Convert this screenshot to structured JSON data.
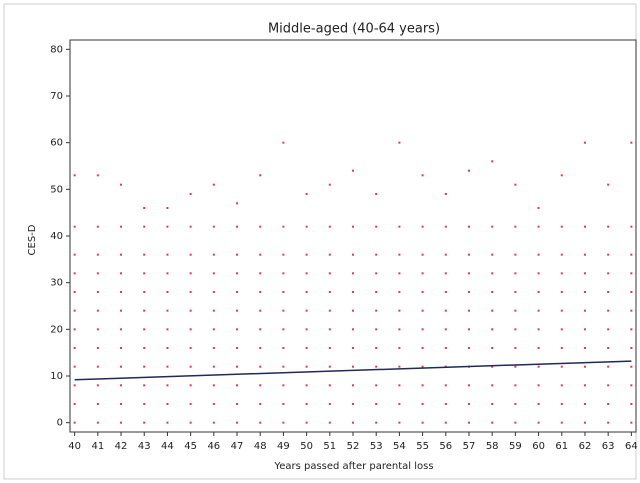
{
  "chart_data": {
    "type": "scatter",
    "title": "Middle-aged (40-64 years)",
    "x_label": "Years passed after parental loss",
    "y_label": "CES-D",
    "x": [
      40,
      40,
      40,
      40,
      40,
      40,
      40,
      40,
      40,
      40,
      40,
      40,
      41,
      41,
      41,
      41,
      41,
      41,
      41,
      41,
      41,
      41,
      41,
      41,
      42,
      42,
      42,
      42,
      42,
      42,
      42,
      42,
      42,
      42,
      42,
      42,
      43,
      43,
      43,
      43,
      43,
      43,
      43,
      43,
      43,
      43,
      43,
      43,
      44,
      44,
      44,
      44,
      44,
      44,
      44,
      44,
      44,
      44,
      44,
      44,
      45,
      45,
      45,
      45,
      45,
      45,
      45,
      45,
      45,
      45,
      45,
      45,
      46,
      46,
      46,
      46,
      46,
      46,
      46,
      46,
      46,
      46,
      46,
      46,
      47,
      47,
      47,
      47,
      47,
      47,
      47,
      47,
      47,
      47,
      47,
      47,
      48,
      48,
      48,
      48,
      48,
      48,
      48,
      48,
      48,
      48,
      48,
      48,
      49,
      49,
      49,
      49,
      49,
      49,
      49,
      49,
      49,
      49,
      49,
      49,
      50,
      50,
      50,
      50,
      50,
      50,
      50,
      50,
      50,
      50,
      50,
      50,
      51,
      51,
      51,
      51,
      51,
      51,
      51,
      51,
      51,
      51,
      51,
      51,
      52,
      52,
      52,
      52,
      52,
      52,
      52,
      52,
      52,
      52,
      52,
      52,
      53,
      53,
      53,
      53,
      53,
      53,
      53,
      53,
      53,
      53,
      53,
      53,
      54,
      54,
      54,
      54,
      54,
      54,
      54,
      54,
      54,
      54,
      54,
      54,
      55,
      55,
      55,
      55,
      55,
      55,
      55,
      55,
      55,
      55,
      55,
      55,
      56,
      56,
      56,
      56,
      56,
      56,
      56,
      56,
      56,
      56,
      56,
      56,
      57,
      57,
      57,
      57,
      57,
      57,
      57,
      57,
      57,
      57,
      57,
      57,
      58,
      58,
      58,
      58,
      58,
      58,
      58,
      58,
      58,
      58,
      58,
      58,
      59,
      59,
      59,
      59,
      59,
      59,
      59,
      59,
      59,
      59,
      59,
      59,
      60,
      60,
      60,
      60,
      60,
      60,
      60,
      60,
      60,
      60,
      60,
      60,
      61,
      61,
      61,
      61,
      61,
      61,
      61,
      61,
      61,
      61,
      61,
      61,
      62,
      62,
      62,
      62,
      62,
      62,
      62,
      62,
      62,
      62,
      62,
      62,
      63,
      63,
      63,
      63,
      63,
      63,
      63,
      63,
      63,
      63,
      63,
      63,
      64,
      64,
      64,
      64,
      64,
      64,
      64,
      64,
      64,
      64,
      64,
      64
    ],
    "values": [
      0,
      4,
      8,
      12,
      16,
      20,
      24,
      28,
      32,
      36,
      42,
      53,
      0,
      4,
      8,
      12,
      16,
      20,
      24,
      28,
      32,
      36,
      42,
      53,
      0,
      4,
      8,
      12,
      16,
      20,
      24,
      28,
      32,
      36,
      42,
      51,
      0,
      4,
      8,
      12,
      16,
      20,
      24,
      28,
      32,
      36,
      42,
      46,
      0,
      4,
      8,
      12,
      16,
      20,
      24,
      28,
      32,
      36,
      42,
      46,
      0,
      4,
      8,
      12,
      16,
      20,
      24,
      28,
      32,
      36,
      42,
      49,
      0,
      4,
      8,
      12,
      16,
      20,
      24,
      28,
      32,
      36,
      42,
      51,
      0,
      4,
      8,
      12,
      16,
      20,
      24,
      28,
      32,
      36,
      42,
      47,
      0,
      4,
      8,
      12,
      16,
      20,
      24,
      28,
      32,
      36,
      42,
      53,
      0,
      4,
      8,
      12,
      16,
      20,
      24,
      28,
      32,
      36,
      42,
      60,
      0,
      4,
      8,
      12,
      16,
      20,
      24,
      28,
      32,
      36,
      42,
      49,
      0,
      4,
      8,
      12,
      16,
      20,
      24,
      28,
      32,
      36,
      42,
      51,
      0,
      4,
      8,
      12,
      16,
      20,
      24,
      28,
      32,
      36,
      42,
      54,
      0,
      4,
      8,
      12,
      16,
      20,
      24,
      28,
      32,
      36,
      42,
      49,
      0,
      4,
      8,
      12,
      16,
      20,
      24,
      28,
      32,
      36,
      42,
      60,
      0,
      4,
      8,
      12,
      16,
      20,
      24,
      28,
      32,
      36,
      42,
      53,
      0,
      4,
      8,
      12,
      16,
      20,
      24,
      28,
      32,
      36,
      42,
      49,
      0,
      4,
      8,
      12,
      16,
      20,
      24,
      28,
      32,
      36,
      42,
      54,
      0,
      4,
      8,
      12,
      16,
      20,
      24,
      28,
      32,
      36,
      42,
      56,
      0,
      4,
      8,
      12,
      16,
      20,
      24,
      28,
      32,
      36,
      42,
      51,
      0,
      4,
      8,
      12,
      16,
      20,
      24,
      28,
      32,
      36,
      42,
      46,
      0,
      4,
      8,
      12,
      16,
      20,
      24,
      28,
      32,
      36,
      42,
      53,
      0,
      4,
      8,
      12,
      16,
      20,
      24,
      28,
      32,
      36,
      42,
      60,
      0,
      4,
      8,
      12,
      16,
      20,
      24,
      28,
      32,
      36,
      42,
      51,
      0,
      4,
      8,
      12,
      16,
      20,
      24,
      28,
      32,
      36,
      42,
      60
    ],
    "color": "#e8364a",
    "trend": {
      "x": [
        40,
        64
      ],
      "values": [
        9.2,
        13.2
      ],
      "color": "#1f2a55"
    },
    "xlim": [
      39.8,
      64.2
    ],
    "ylim": [
      -2,
      82
    ],
    "xticks": [
      40,
      41,
      42,
      43,
      44,
      45,
      46,
      47,
      48,
      49,
      50,
      51,
      52,
      53,
      54,
      55,
      56,
      57,
      58,
      59,
      60,
      61,
      62,
      63,
      64
    ],
    "yticks": [
      0,
      10,
      20,
      30,
      40,
      50,
      60,
      70,
      80
    ]
  }
}
